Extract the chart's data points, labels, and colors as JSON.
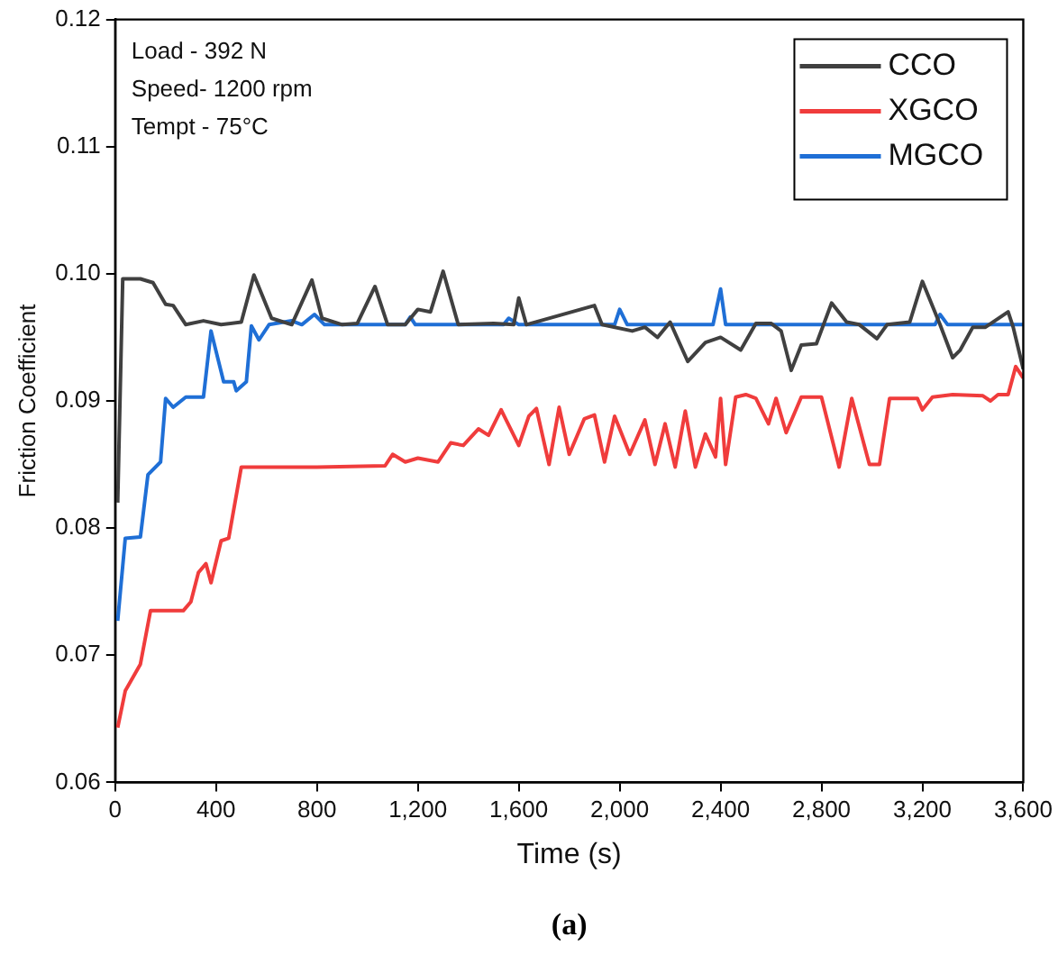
{
  "chart_data": {
    "type": "line",
    "xlabel": "Time (s)",
    "ylabel": "Friction Coefficient",
    "annotations": [
      "Load - 392 N",
      "Speed- 1200 rpm",
      "Tempt - 75°C",
      "(a)"
    ],
    "xlim": [
      0,
      3600
    ],
    "xticks": [
      0,
      400,
      800,
      {
        "value": 1200,
        "label": "1,200"
      },
      {
        "value": 1600,
        "label": "1,600"
      },
      {
        "value": 2000,
        "label": "2,000"
      },
      {
        "value": 2400,
        "label": "2,400"
      },
      {
        "value": 2800,
        "label": "2,800"
      },
      {
        "value": 3200,
        "label": "3,200"
      },
      {
        "value": 3600,
        "label": "3,600"
      }
    ],
    "ylim": [
      0.06,
      0.12
    ],
    "yticks": [
      0.06,
      0.07,
      0.08,
      0.09,
      {
        "value": 0.1,
        "label": "0.10"
      },
      0.11,
      0.12
    ],
    "grid": false,
    "legend": "top right",
    "marker": "none",
    "line_style": "solid",
    "series": [
      {
        "name": "CCO",
        "color": "#404040",
        "x": [
          10,
          30,
          100,
          150,
          200,
          230,
          280,
          350,
          420,
          500,
          550,
          620,
          700,
          780,
          820,
          900,
          960,
          1030,
          1080,
          1150,
          1200,
          1250,
          1300,
          1360,
          1500,
          1580,
          1600,
          1630,
          1900,
          1930,
          2050,
          2100,
          2150,
          2200,
          2270,
          2340,
          2400,
          2480,
          2540,
          2600,
          2640,
          2680,
          2720,
          2780,
          2840,
          2900,
          2950,
          3020,
          3060,
          3150,
          3200,
          3270,
          3320,
          3350,
          3400,
          3450,
          3540,
          3560,
          3600
        ],
        "values": [
          0.082,
          0.0996,
          0.0996,
          0.0993,
          0.0976,
          0.0975,
          0.096,
          0.0963,
          0.096,
          0.0962,
          0.0999,
          0.0965,
          0.096,
          0.0995,
          0.0965,
          0.096,
          0.0961,
          0.099,
          0.096,
          0.096,
          0.0972,
          0.097,
          0.1002,
          0.096,
          0.0961,
          0.096,
          0.0981,
          0.096,
          0.0975,
          0.096,
          0.0955,
          0.0958,
          0.095,
          0.0962,
          0.0931,
          0.0946,
          0.095,
          0.094,
          0.0961,
          0.0961,
          0.0955,
          0.0924,
          0.0944,
          0.0945,
          0.0977,
          0.0962,
          0.096,
          0.0949,
          0.096,
          0.0962,
          0.0994,
          0.096,
          0.0934,
          0.094,
          0.0958,
          0.0958,
          0.097,
          0.0958,
          0.0925
        ]
      },
      {
        "name": "XGCO",
        "color": "#f03c3c",
        "x": [
          10,
          40,
          100,
          140,
          200,
          270,
          300,
          330,
          360,
          380,
          420,
          450,
          500,
          800,
          1070,
          1100,
          1150,
          1200,
          1280,
          1330,
          1380,
          1440,
          1480,
          1530,
          1600,
          1640,
          1670,
          1720,
          1760,
          1800,
          1860,
          1900,
          1940,
          1980,
          2040,
          2100,
          2140,
          2180,
          2220,
          2260,
          2300,
          2340,
          2380,
          2400,
          2420,
          2460,
          2500,
          2540,
          2590,
          2620,
          2660,
          2720,
          2800,
          2870,
          2920,
          2990,
          3030,
          3070,
          3180,
          3200,
          3240,
          3320,
          3440,
          3470,
          3500,
          3540,
          3570,
          3600
        ],
        "values": [
          0.0643,
          0.0672,
          0.0693,
          0.0735,
          0.0735,
          0.0735,
          0.0742,
          0.0765,
          0.0772,
          0.0757,
          0.079,
          0.0792,
          0.0848,
          0.0848,
          0.0849,
          0.0858,
          0.0852,
          0.0855,
          0.0852,
          0.0867,
          0.0865,
          0.0878,
          0.0873,
          0.0893,
          0.0865,
          0.0888,
          0.0894,
          0.085,
          0.0895,
          0.0858,
          0.0886,
          0.0889,
          0.0852,
          0.0888,
          0.0858,
          0.0885,
          0.085,
          0.0882,
          0.0848,
          0.0892,
          0.0848,
          0.0874,
          0.0856,
          0.0902,
          0.085,
          0.0903,
          0.0905,
          0.0902,
          0.0882,
          0.0902,
          0.0875,
          0.0903,
          0.0903,
          0.0848,
          0.0902,
          0.085,
          0.085,
          0.0902,
          0.0902,
          0.0893,
          0.0903,
          0.0905,
          0.0904,
          0.09,
          0.0905,
          0.0905,
          0.0927,
          0.0918
        ]
      },
      {
        "name": "MGCO",
        "color": "#1f6fd6",
        "x": [
          10,
          40,
          100,
          130,
          180,
          200,
          230,
          280,
          350,
          380,
          430,
          470,
          480,
          520,
          540,
          570,
          610,
          700,
          740,
          790,
          830,
          1150,
          1170,
          1190,
          1540,
          1560,
          1600,
          1980,
          2000,
          2030,
          2370,
          2400,
          2420,
          3250,
          3270,
          3300,
          3600
        ],
        "values": [
          0.0727,
          0.0792,
          0.0793,
          0.0842,
          0.0852,
          0.0902,
          0.0895,
          0.0903,
          0.0903,
          0.0955,
          0.0915,
          0.0915,
          0.0908,
          0.0915,
          0.0959,
          0.0948,
          0.096,
          0.0963,
          0.096,
          0.0968,
          0.096,
          0.096,
          0.0966,
          0.096,
          0.096,
          0.0965,
          0.096,
          0.096,
          0.0972,
          0.096,
          0.096,
          0.0988,
          0.096,
          0.096,
          0.0968,
          0.096,
          0.096
        ]
      }
    ]
  }
}
